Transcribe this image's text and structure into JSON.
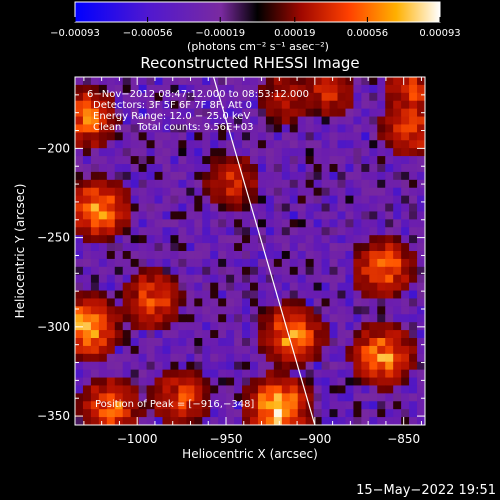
{
  "chart_data": {
    "type": "heatmap",
    "title": "Reconstructed RHESSI Image",
    "xlabel": "Heliocentric X (arcsec)",
    "ylabel": "Heliocentric Y (arcsec)",
    "xlim": [
      -1035,
      -838
    ],
    "ylim": [
      -355,
      -160
    ],
    "x_ticks": [
      -1000,
      -950,
      -900,
      -850
    ],
    "x_tick_labels": [
      "−1000",
      "−950",
      "−900",
      "−850"
    ],
    "y_ticks": [
      -200,
      -250,
      -300,
      -350
    ],
    "y_tick_labels": [
      "−200",
      "−250",
      "−300",
      "−350"
    ],
    "colorbar": {
      "range": [
        -0.00093,
        0.00093
      ],
      "ticks": [
        -0.00093,
        -0.00056,
        -0.00019,
        0.00019,
        0.00056,
        0.00093
      ],
      "tick_labels": [
        "−0.00093",
        "−0.00056",
        "−0.00019",
        "0.00019",
        "0.00056",
        "0.00093"
      ],
      "units": "(photons cm⁻² s⁻¹ asec⁻²)"
    },
    "annotations": [
      "6−Nov−2012 08:47:12.000 to 08:53:12.000",
      "Detectors: 3F 5F 6F 7F 8F, Att 0",
      "Energy Range: 12.0 − 25.0 keV",
      "Clean     Total counts: 9.56E+03"
    ],
    "peak_label": "Position of Peak = [−916,−348]",
    "peak": [
      -916,
      -348
    ],
    "limb_line": [
      [
        -957,
        -160
      ],
      [
        -900,
        -355
      ]
    ],
    "timestamp": "15−May−2022 19:51"
  },
  "colors": {
    "background": "#000000",
    "foreground": "#ffffff",
    "colormap": [
      "#0000ff",
      "#4010d0",
      "#6a1cb0",
      "#7a2aa0",
      "#1a0a20",
      "#000000",
      "#600000",
      "#c01000",
      "#ff5000",
      "#ffb000",
      "#ffffff"
    ]
  }
}
